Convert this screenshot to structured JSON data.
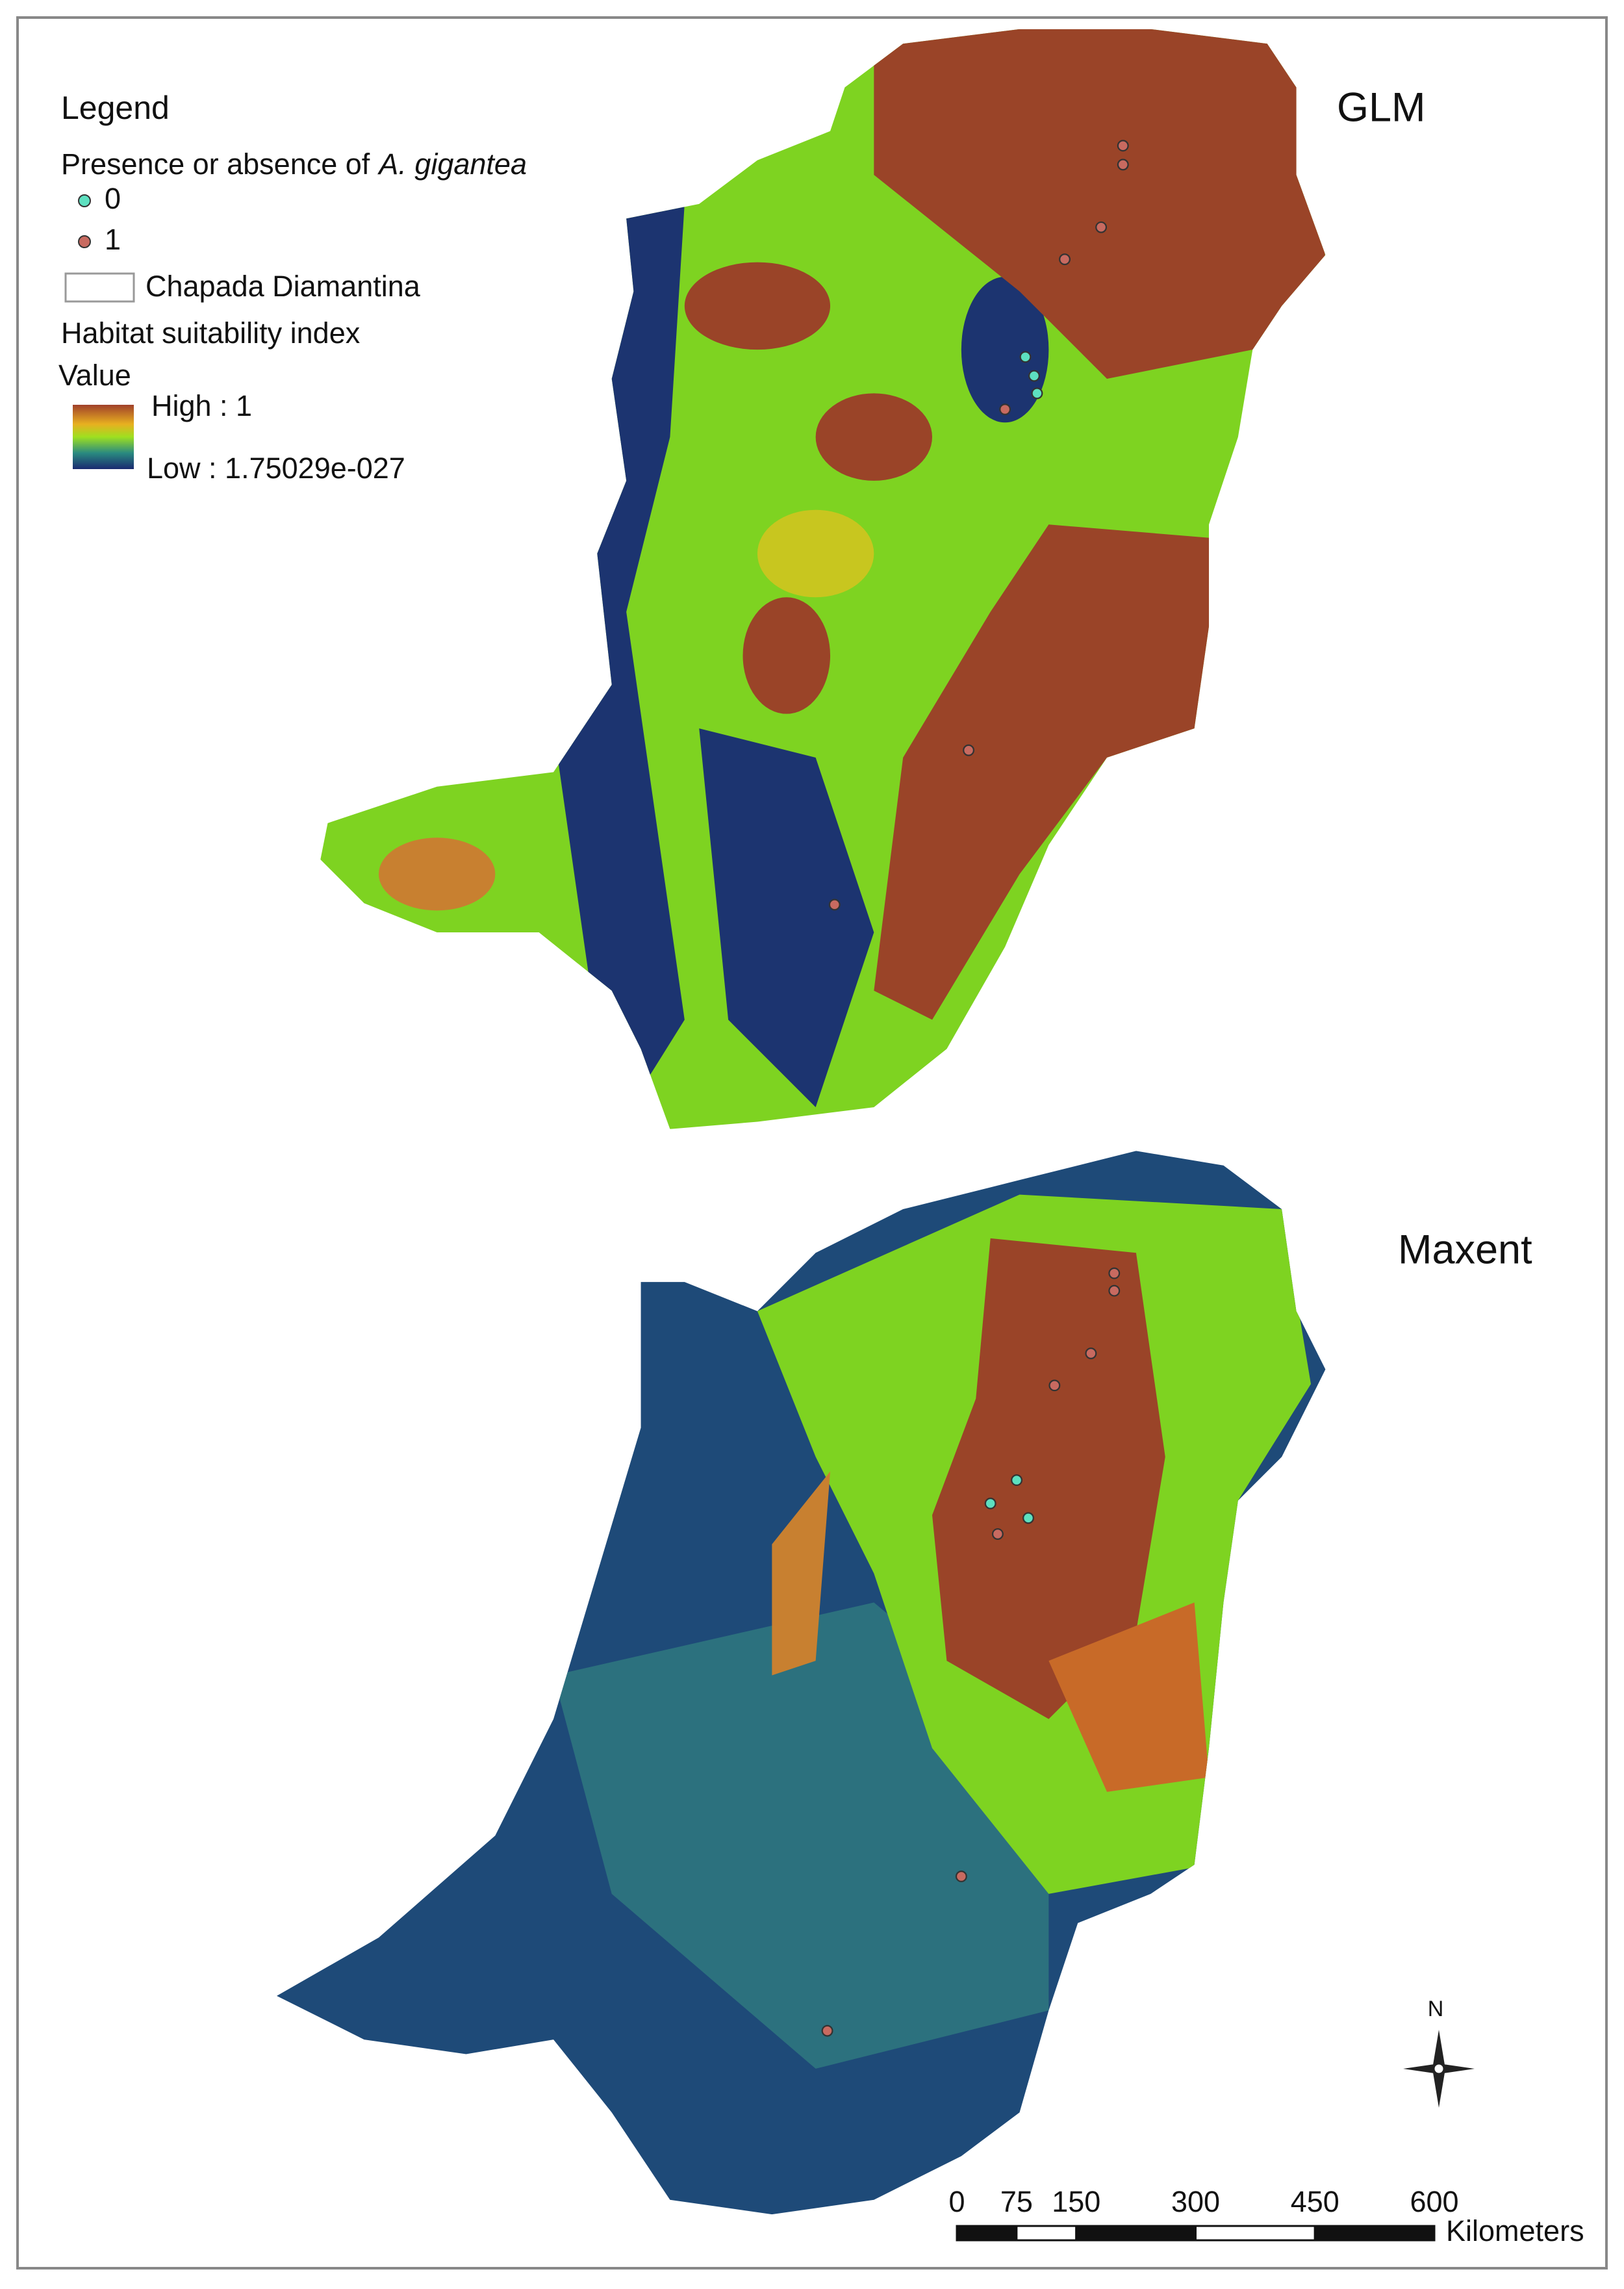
{
  "legend": {
    "title": "Legend",
    "presence_label": "Presence or absence of",
    "species": "A. gigantea",
    "classes": [
      "0",
      "1"
    ],
    "boundary": "Chapada Diamantina",
    "index_title": "Habitat suitability index",
    "value_title": "Value",
    "high": "High : 1",
    "low": "Low : 1.75029e-027"
  },
  "maps": [
    {
      "title": "GLM"
    },
    {
      "title": "Maxent"
    }
  ],
  "north": "N",
  "scale_bar": {
    "ticks": [
      0,
      75,
      150,
      300,
      450,
      600
    ],
    "unit": "Kilometers"
  }
}
